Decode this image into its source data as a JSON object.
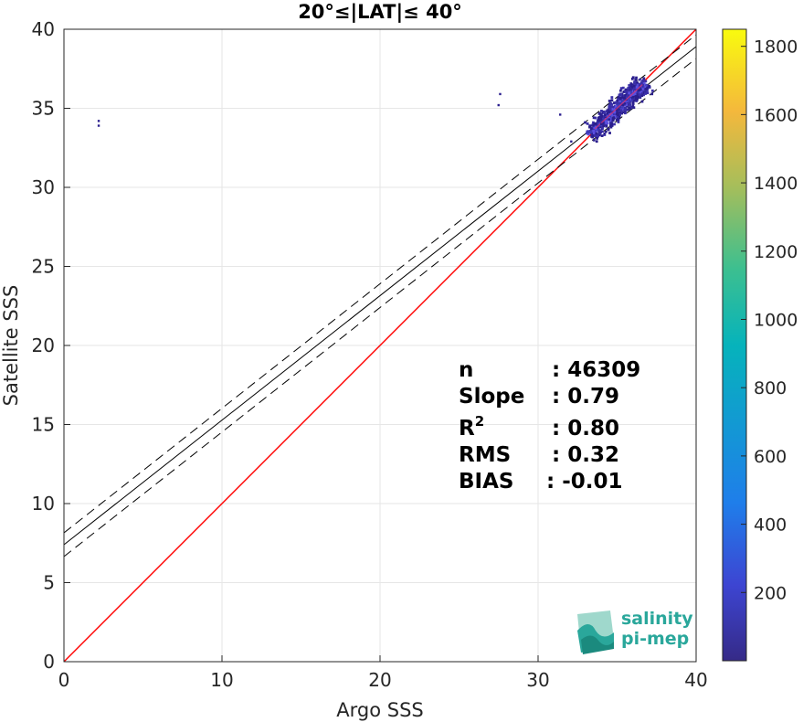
{
  "chart_data": {
    "type": "heatmap",
    "title": "20°≤|LAT|≤ 40°",
    "xlabel": "Argo SSS",
    "ylabel": "Satellite SSS",
    "xlim": [
      0,
      40
    ],
    "ylim": [
      0,
      40
    ],
    "xticks": [
      0,
      10,
      20,
      30,
      40
    ],
    "yticks": [
      0,
      5,
      10,
      15,
      20,
      25,
      30,
      35,
      40
    ],
    "grid": true,
    "colorbar": {
      "min": 0,
      "max": 1850,
      "ticks": [
        200,
        400,
        600,
        800,
        1000,
        1200,
        1400,
        1600,
        1800
      ],
      "colormap": "parula"
    },
    "lines": [
      {
        "kind": "identity",
        "color": "#ff0000",
        "x": [
          0,
          40
        ],
        "y": [
          0,
          40
        ]
      },
      {
        "kind": "fit",
        "color": "#000000",
        "style": "solid",
        "x": [
          0,
          40
        ],
        "y": [
          7.4,
          38.9
        ]
      },
      {
        "kind": "fit-upper",
        "color": "#000000",
        "style": "dashed",
        "x": [
          0,
          40
        ],
        "y": [
          8.15,
          39.65
        ]
      },
      {
        "kind": "fit-lower",
        "color": "#000000",
        "style": "dashed",
        "x": [
          0,
          40
        ],
        "y": [
          6.65,
          38.15
        ]
      }
    ],
    "points": [
      {
        "x": 2.2,
        "y": 34.2
      },
      {
        "x": 2.2,
        "y": 33.9
      },
      {
        "x": 27.6,
        "y": 35.9
      },
      {
        "x": 27.5,
        "y": 35.2
      },
      {
        "x": 31.4,
        "y": 34.6
      },
      {
        "x": 32.1,
        "y": 32.9
      },
      {
        "x": 33.5,
        "y": 33.9
      },
      {
        "x": 34.0,
        "y": 34.0
      },
      {
        "x": 34.5,
        "y": 34.3
      },
      {
        "x": 35.0,
        "y": 34.8
      },
      {
        "x": 35.5,
        "y": 35.3
      },
      {
        "x": 36.0,
        "y": 35.7
      },
      {
        "x": 36.5,
        "y": 36.2
      },
      {
        "x": 34.2,
        "y": 33.4
      },
      {
        "x": 35.2,
        "y": 35.6
      },
      {
        "x": 33.9,
        "y": 34.7
      },
      {
        "x": 36.1,
        "y": 36.4
      },
      {
        "x": 35.7,
        "y": 34.9
      }
    ],
    "stats": [
      {
        "label": "n",
        "value": ": 46309"
      },
      {
        "label": "Slope",
        "value": ": 0.79"
      },
      {
        "label": "R",
        "sup": "2",
        "value": ": 0.80"
      },
      {
        "label": "RMS",
        "value": ": 0.32"
      },
      {
        "label": "BIAS",
        "value": ": -0.01"
      }
    ]
  },
  "logo": {
    "line1": "salinity",
    "line2": "pi-mep",
    "colors": [
      "#2aa79b",
      "#9fd8cc",
      "#1b8a7e"
    ]
  }
}
